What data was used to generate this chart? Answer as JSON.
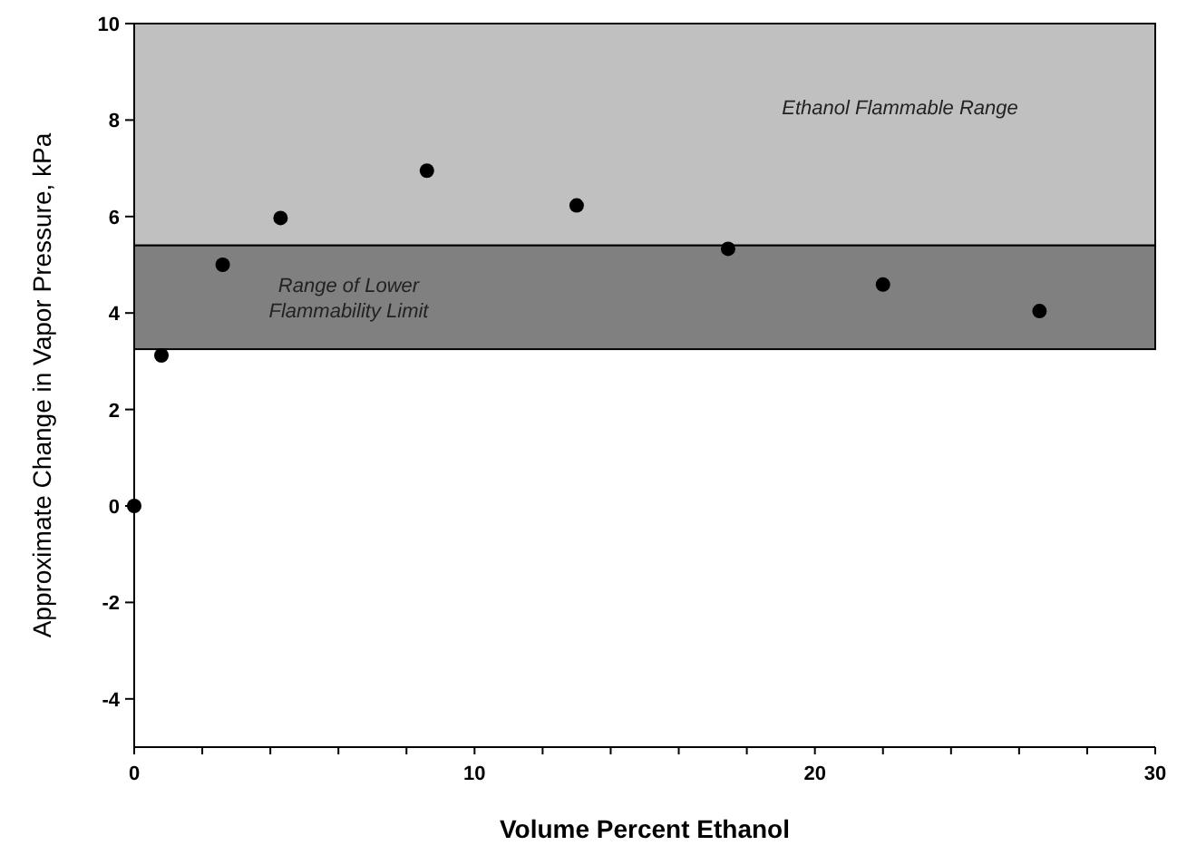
{
  "chart_data": {
    "type": "scatter",
    "xlabel": "Volume Percent Ethanol",
    "ylabel": "Approximate Change in Vapor Pressure, kPa",
    "x": [
      0,
      0.8,
      2.6,
      4.3,
      8.6,
      13.0,
      17.45,
      22.0,
      26.6
    ],
    "series": [
      {
        "color": "#000000",
        "values": [
          0,
          3.12,
          5.0,
          5.97,
          6.95,
          6.23,
          5.33,
          4.59,
          4.04
        ]
      }
    ],
    "marker": "circle",
    "xlim": [
      0,
      30
    ],
    "xticks": [
      0,
      {
        "value": 2,
        "label": null
      },
      {
        "value": 4,
        "label": null
      },
      {
        "value": 6,
        "label": null
      },
      {
        "value": 8,
        "label": null
      },
      10,
      {
        "value": 12,
        "label": null
      },
      {
        "value": 14,
        "label": null
      },
      {
        "value": 16,
        "label": null
      },
      {
        "value": 18,
        "label": null
      },
      20,
      {
        "value": 22,
        "label": null
      },
      {
        "value": 24,
        "label": null
      },
      {
        "value": 26,
        "label": null
      },
      {
        "value": 28,
        "label": null
      },
      30
    ],
    "ylim": [
      -5,
      10
    ],
    "yticks": [
      -4,
      -2,
      0,
      2,
      4,
      6,
      8,
      10
    ],
    "bands": [
      {
        "axis": "y",
        "from": 5.4,
        "to": 10,
        "label": "Ethanol Flammable Range",
        "color": "#c0c0c0"
      },
      {
        "axis": "y",
        "from": 3.25,
        "to": 5.4,
        "label": "Range of Lower\nFlammability Limit",
        "color": "#808080"
      }
    ],
    "grid": false
  }
}
